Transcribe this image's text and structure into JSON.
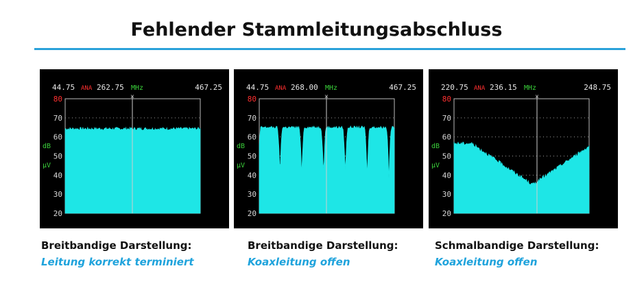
{
  "title": "Fehlender Stammleitungsabschluss",
  "colors": {
    "rule": "#2aa1d9",
    "trace": "#1ee6e6",
    "caption_accent": "#1fa3dc",
    "mode": "#ff3030",
    "unit": "#3ad03a"
  },
  "panels": [
    {
      "start": "44.75",
      "mode": "ANA",
      "marker": "262.75",
      "unit": "MHz",
      "stop": "467.25",
      "y_ticks": [
        "80",
        "70",
        "60",
        "50",
        "40",
        "30",
        "20"
      ],
      "y_unit_db": "dB",
      "y_unit_uv": "µV",
      "shape": "flat",
      "caption_line1": "Breitbandige Darstellung:",
      "caption_line2": "Leitung korrekt terminiert"
    },
    {
      "start": "44.75",
      "mode": "ANA",
      "marker": "268.00",
      "unit": "MHz",
      "stop": "467.25",
      "y_ticks": [
        "80",
        "70",
        "60",
        "50",
        "40",
        "30",
        "20"
      ],
      "y_unit_db": "dB",
      "y_unit_uv": "µV",
      "shape": "ripple",
      "caption_line1": "Breitbandige Darstellung:",
      "caption_line2": "Koaxleitung offen"
    },
    {
      "start": "220.75",
      "mode": "ANA",
      "marker": "236.15",
      "unit": "MHz",
      "stop": "248.75",
      "y_ticks": [
        "80",
        "70",
        "60",
        "50",
        "40",
        "30",
        "20"
      ],
      "y_unit_db": "dB",
      "y_unit_uv": "µV",
      "shape": "notch",
      "caption_line1": "Schmalbandige Darstellung:",
      "caption_line2": "Koaxleitung offen"
    }
  ]
}
